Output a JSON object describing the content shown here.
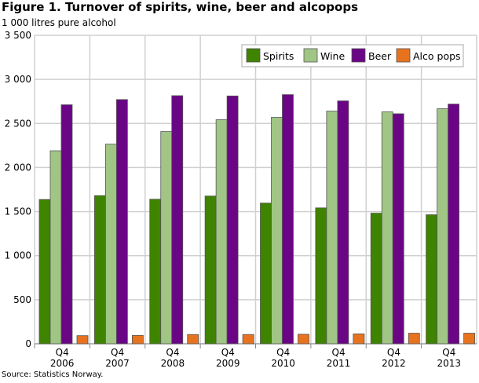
{
  "chart_data": {
    "type": "bar",
    "title": "Figure 1. Turnover of spirits, wine, beer and alcopops",
    "ylabel": "1 000 litres pure alcohol",
    "source": "Source: Statistics Norway.",
    "ylim": [
      0,
      3500
    ],
    "yticks": [
      0,
      500,
      1000,
      1500,
      2000,
      2500,
      3000,
      3500
    ],
    "ytick_labels": [
      "0",
      "500",
      "1 000",
      "1 500",
      "2 000",
      "2 500",
      "3 000",
      "3 500"
    ],
    "categories": [
      [
        "Q4",
        "2006"
      ],
      [
        "Q4",
        "2007"
      ],
      [
        "Q4",
        "2008"
      ],
      [
        "Q4",
        "2009"
      ],
      [
        "Q4",
        "2010"
      ],
      [
        "Q4",
        "2011"
      ],
      [
        "Q4",
        "2012"
      ],
      [
        "Q4",
        "2013"
      ]
    ],
    "grid": true,
    "legend": "top-right",
    "series": [
      {
        "name": "Spirits",
        "color": "#3f8400",
        "values": [
          1637,
          1681,
          1640,
          1676,
          1596,
          1542,
          1482,
          1464
        ]
      },
      {
        "name": "Wine",
        "color": "#a0c585",
        "values": [
          2190,
          2265,
          2408,
          2542,
          2569,
          2640,
          2631,
          2667
        ]
      },
      {
        "name": "Beer",
        "color": "#6a0585",
        "values": [
          2712,
          2771,
          2815,
          2812,
          2827,
          2756,
          2610,
          2720
        ]
      },
      {
        "name": "Alco pops",
        "color": "#e8731f",
        "values": [
          92,
          95,
          105,
          105,
          108,
          112,
          120,
          120
        ]
      }
    ]
  }
}
